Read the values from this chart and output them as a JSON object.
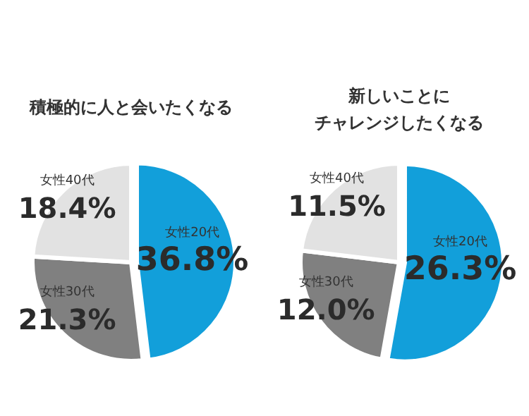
{
  "chart_data": [
    {
      "type": "pie",
      "title": "積極的に人と会いたくなる",
      "categories": [
        "女性20代",
        "女性30代",
        "女性40代"
      ],
      "values": [
        36.8,
        21.3,
        18.4
      ],
      "value_labels": [
        "36.8%",
        "21.3%",
        "18.4%"
      ],
      "colors": [
        "#129fda",
        "#808080",
        "#e2e2e2"
      ],
      "legend": false
    },
    {
      "type": "pie",
      "title": "新しいことにチャレンジしたくなる",
      "categories": [
        "女性20代",
        "女性30代",
        "女性40代"
      ],
      "values": [
        26.3,
        12.0,
        11.5
      ],
      "value_labels": [
        "26.3%",
        "12.0%",
        "11.5%"
      ],
      "colors": [
        "#129fda",
        "#808080",
        "#e2e2e2"
      ],
      "legend": false
    }
  ]
}
